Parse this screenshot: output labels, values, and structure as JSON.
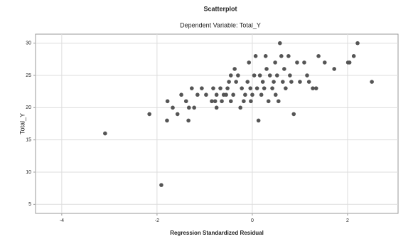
{
  "chart_data": {
    "type": "scatter",
    "title": "Scatterplot",
    "subtitle": "Dependent Variable: Total_Y",
    "x_label": "Regression Standardized Residual",
    "y_label": "Total_Y",
    "xlim": [
      -4.55,
      3.06
    ],
    "ylim": [
      3.6,
      31.4
    ],
    "xticks": [
      -4,
      -2,
      0,
      2
    ],
    "yticks": [
      5,
      10,
      15,
      20,
      25,
      30
    ],
    "grid": true,
    "color": "#555555",
    "series": [
      {
        "name": "Total_Y",
        "x": [
          -3.09,
          -2.16,
          -1.91,
          -1.79,
          -1.78,
          -1.67,
          -1.57,
          -1.49,
          -1.39,
          -1.34,
          -1.33,
          -1.27,
          -1.22,
          -1.15,
          -1.06,
          -0.97,
          -0.85,
          -0.82,
          -0.75,
          -0.78,
          -0.75,
          -0.67,
          -0.64,
          -0.6,
          -0.55,
          -0.52,
          -0.49,
          -0.45,
          -0.45,
          -0.4,
          -0.37,
          -0.34,
          -0.3,
          -0.25,
          -0.22,
          -0.18,
          -0.15,
          -0.1,
          -0.07,
          -0.04,
          -0.03,
          0,
          0.04,
          0.07,
          0.1,
          0.13,
          0.16,
          0.19,
          0.22,
          0.25,
          0.28,
          0.3,
          0.34,
          0.37,
          0.42,
          0.45,
          0.48,
          0.49,
          0.52,
          0.55,
          0.58,
          0.61,
          0.64,
          0.67,
          0.7,
          0.76,
          0.79,
          0.82,
          0.87,
          0.94,
          1.0,
          1.09,
          1.15,
          1.19,
          1.27,
          1.34,
          1.39,
          1.52,
          1.72,
          2.01,
          2.04,
          2.13,
          2.21,
          2.51
        ],
        "values": [
          16,
          19,
          8,
          18,
          21,
          20,
          19,
          22,
          21,
          18,
          20,
          23,
          20,
          22,
          23,
          22,
          21,
          23,
          22,
          21,
          20,
          23,
          21,
          22,
          22,
          23,
          24,
          25,
          21,
          22,
          26,
          24,
          25,
          20,
          23,
          21,
          22,
          24,
          27,
          23,
          21,
          22,
          25,
          28,
          23,
          18,
          25,
          22,
          24,
          23,
          28,
          26,
          21,
          25,
          23,
          24,
          27,
          22,
          25,
          21,
          30,
          28,
          24,
          26,
          23,
          28,
          25,
          24,
          19,
          27,
          24,
          27,
          25,
          24,
          23,
          23,
          28,
          27,
          26,
          27,
          27,
          28,
          30,
          24
        ]
      }
    ]
  }
}
